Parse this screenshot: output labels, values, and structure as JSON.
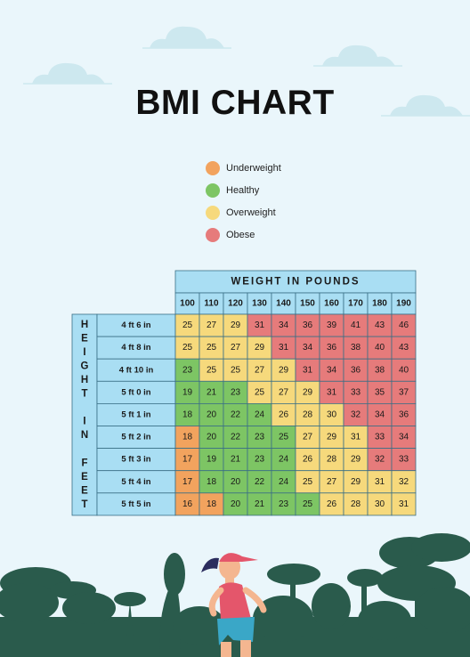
{
  "title": "BMI CHART",
  "legend": [
    {
      "label": "Underweight",
      "color": "#f2a35e"
    },
    {
      "label": "Healthy",
      "color": "#7dc564"
    },
    {
      "label": "Overweight",
      "color": "#f6d97c"
    },
    {
      "label": "Obese",
      "color": "#e67b7b"
    }
  ],
  "chart_data": {
    "type": "table",
    "column_header": "WEIGHT IN POUNDS",
    "row_header": "HEIGHT IN FEET",
    "weights": [
      "100",
      "110",
      "120",
      "130",
      "140",
      "150",
      "160",
      "170",
      "180",
      "190"
    ],
    "heights": [
      "4 ft 6 in",
      "4 ft 8 in",
      "4 ft 10 in",
      "5 ft 0 in",
      "5 ft 1 in",
      "5 ft 2 in",
      "5 ft 3 in",
      "5 ft 4 in",
      "5 ft 5 in"
    ],
    "values": [
      [
        25,
        27,
        29,
        31,
        34,
        36,
        39,
        41,
        43,
        46
      ],
      [
        25,
        25,
        27,
        29,
        31,
        34,
        36,
        38,
        40,
        43
      ],
      [
        23,
        25,
        25,
        27,
        29,
        31,
        34,
        36,
        38,
        40
      ],
      [
        19,
        21,
        23,
        25,
        27,
        29,
        31,
        33,
        35,
        37
      ],
      [
        18,
        20,
        22,
        24,
        26,
        28,
        30,
        32,
        34,
        36
      ],
      [
        18,
        20,
        22,
        23,
        25,
        27,
        29,
        31,
        33,
        34
      ],
      [
        17,
        19,
        21,
        23,
        24,
        26,
        28,
        29,
        32,
        33
      ],
      [
        17,
        18,
        20,
        22,
        24,
        25,
        27,
        29,
        31,
        32
      ],
      [
        16,
        18,
        20,
        21,
        23,
        25,
        26,
        28,
        30,
        31
      ]
    ],
    "categories": [
      [
        "OW",
        "OW",
        "OW",
        "OB",
        "OB",
        "OB",
        "OB",
        "OB",
        "OB",
        "OB"
      ],
      [
        "OW",
        "OW",
        "OW",
        "OW",
        "OB",
        "OB",
        "OB",
        "OB",
        "OB",
        "OB"
      ],
      [
        "H",
        "OW",
        "OW",
        "OW",
        "OW",
        "OB",
        "OB",
        "OB",
        "OB",
        "OB"
      ],
      [
        "H",
        "H",
        "H",
        "OW",
        "OW",
        "OW",
        "OB",
        "OB",
        "OB",
        "OB"
      ],
      [
        "H",
        "H",
        "H",
        "H",
        "OW",
        "OW",
        "OW",
        "OB",
        "OB",
        "OB"
      ],
      [
        "UW",
        "H",
        "H",
        "H",
        "H",
        "OW",
        "OW",
        "OW",
        "OB",
        "OB"
      ],
      [
        "UW",
        "H",
        "H",
        "H",
        "H",
        "OW",
        "OW",
        "OW",
        "OB",
        "OB"
      ],
      [
        "UW",
        "H",
        "H",
        "H",
        "H",
        "OW",
        "OW",
        "OW",
        "OW",
        "OW"
      ],
      [
        "UW",
        "UW",
        "H",
        "H",
        "H",
        "H",
        "OW",
        "OW",
        "OW",
        "OW"
      ]
    ],
    "category_colors": {
      "UW": "#f2a35e",
      "H": "#7dc564",
      "OW": "#f6d97c",
      "OB": "#e67b7b"
    },
    "header_color": "#a9def3"
  }
}
